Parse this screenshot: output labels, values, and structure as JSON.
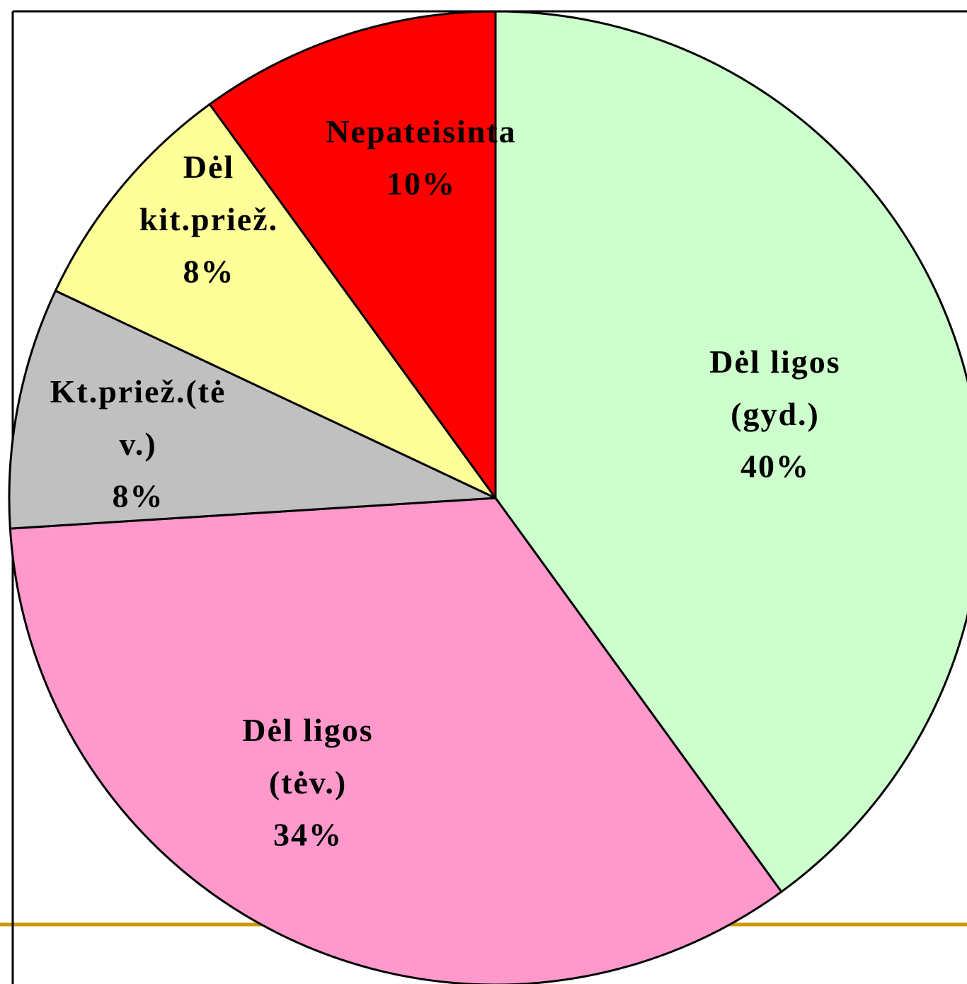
{
  "chart_data": {
    "type": "pie",
    "categories": [
      "Dėl ligos (gyd.)",
      "Dėl ligos (tėv.)",
      "Kt.priež.(tėv.)",
      "Dėl kit.priež.",
      "Nepateisinta"
    ],
    "values": [
      40,
      34,
      8,
      8,
      10
    ],
    "value_labels": [
      "40%",
      "34%",
      "8%",
      "8%",
      "10%"
    ],
    "colors": [
      "#CCFFCC",
      "#FF99CC",
      "#C0C0C0",
      "#FFFF99",
      "#FF0000"
    ]
  }
}
